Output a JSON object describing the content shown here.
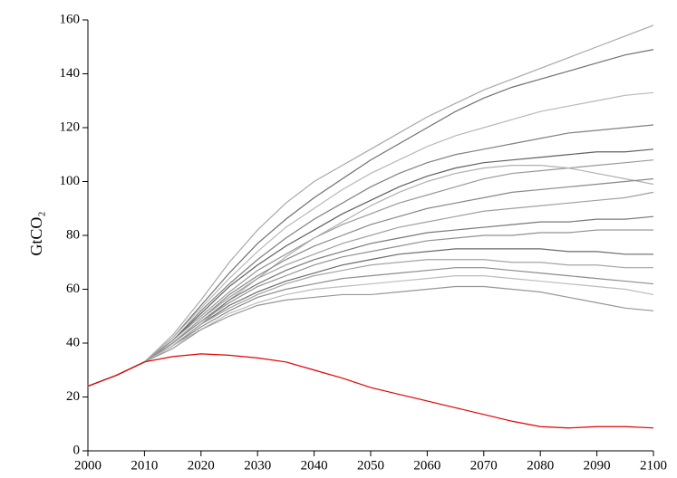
{
  "chart_data": {
    "type": "line",
    "y_label": "GtCO₂",
    "x": [
      2000,
      2005,
      2010,
      2015,
      2020,
      2025,
      2030,
      2035,
      2040,
      2045,
      2050,
      2055,
      2060,
      2065,
      2070,
      2075,
      2080,
      2085,
      2090,
      2095,
      2100
    ],
    "xlim": [
      2000,
      2100
    ],
    "xticks": [
      2000,
      2010,
      2020,
      2030,
      2040,
      2050,
      2060,
      2070,
      2080,
      2090,
      2100
    ],
    "ylim": [
      0,
      160
    ],
    "yticks": [
      0,
      20,
      40,
      60,
      80,
      100,
      120,
      140,
      160
    ],
    "grid": false,
    "series": [
      {
        "color": "#a8a8a8",
        "values": [
          24,
          28,
          33,
          43,
          56,
          70,
          82,
          92,
          100,
          106,
          112,
          118,
          124,
          129,
          134,
          138,
          142,
          146,
          150,
          154,
          158
        ]
      },
      {
        "color": "#707070",
        "values": [
          24,
          28,
          33,
          42,
          54,
          66,
          77,
          86,
          94,
          101,
          108,
          114,
          120,
          126,
          131,
          135,
          138,
          141,
          144,
          147,
          149
        ]
      },
      {
        "color": "#b8b8b8",
        "values": [
          24,
          28,
          33,
          42,
          53,
          64,
          74,
          83,
          90,
          97,
          103,
          108,
          113,
          117,
          120,
          123,
          126,
          128,
          130,
          132,
          133
        ]
      },
      {
        "color": "#808080",
        "values": [
          24,
          28,
          33,
          41,
          52,
          62,
          71,
          79,
          86,
          92,
          98,
          103,
          107,
          110,
          112,
          114,
          116,
          118,
          119,
          120,
          121
        ]
      },
      {
        "color": "#606060",
        "values": [
          24,
          28,
          33,
          41,
          51,
          61,
          69,
          76,
          82,
          88,
          93,
          98,
          102,
          105,
          107,
          108,
          109,
          110,
          111,
          111,
          112
        ]
      },
      {
        "color": "#999999",
        "values": [
          24,
          28,
          33,
          41,
          50,
          59,
          67,
          73,
          79,
          84,
          88,
          92,
          95,
          98,
          101,
          103,
          104,
          105,
          106,
          107,
          108
        ]
      },
      {
        "color": "#b0b0b0",
        "values": [
          24,
          28,
          33,
          39,
          47,
          56,
          64,
          72,
          79,
          85,
          91,
          96,
          100,
          103,
          105,
          106,
          106,
          105,
          103,
          101,
          99
        ]
      },
      {
        "color": "#888888",
        "values": [
          24,
          28,
          33,
          40,
          49,
          58,
          65,
          71,
          76,
          80,
          84,
          87,
          90,
          92,
          94,
          96,
          97,
          98,
          99,
          100,
          101
        ]
      },
      {
        "color": "#a0a0a0",
        "values": [
          24,
          28,
          33,
          40,
          49,
          57,
          64,
          69,
          73,
          77,
          80,
          83,
          85,
          87,
          89,
          90,
          91,
          92,
          93,
          94,
          96
        ]
      },
      {
        "color": "#787878",
        "values": [
          24,
          28,
          33,
          40,
          48,
          56,
          62,
          67,
          71,
          74,
          77,
          79,
          81,
          82,
          83,
          84,
          85,
          85,
          86,
          86,
          87
        ]
      },
      {
        "color": "#909090",
        "values": [
          24,
          28,
          33,
          40,
          48,
          55,
          61,
          65,
          69,
          72,
          74,
          76,
          78,
          79,
          80,
          80,
          81,
          81,
          82,
          82,
          82
        ]
      },
      {
        "color": "#6a6a6a",
        "values": [
          24,
          28,
          33,
          39,
          47,
          54,
          59,
          63,
          66,
          69,
          71,
          73,
          74,
          75,
          75,
          75,
          75,
          74,
          74,
          73,
          73
        ]
      },
      {
        "color": "#a4a4a4",
        "values": [
          24,
          28,
          33,
          39,
          47,
          53,
          58,
          62,
          65,
          67,
          69,
          70,
          71,
          71,
          71,
          70,
          70,
          69,
          69,
          68,
          68
        ]
      },
      {
        "color": "#8c8c8c",
        "values": [
          24,
          28,
          33,
          39,
          46,
          52,
          57,
          60,
          62,
          64,
          65,
          66,
          67,
          68,
          68,
          67,
          66,
          65,
          64,
          63,
          62
        ]
      },
      {
        "color": "#bcbcbc",
        "values": [
          24,
          28,
          33,
          39,
          45,
          51,
          55,
          58,
          60,
          61,
          62,
          63,
          64,
          65,
          65,
          64,
          63,
          62,
          61,
          60,
          58
        ]
      },
      {
        "color": "#969696",
        "values": [
          24,
          28,
          33,
          38,
          45,
          50,
          54,
          56,
          57,
          58,
          58,
          59,
          60,
          61,
          61,
          60,
          59,
          57,
          55,
          53,
          52
        ]
      },
      {
        "color": "#e00000",
        "values": [
          24,
          28,
          33,
          35,
          36,
          35.5,
          34.5,
          33,
          30,
          27,
          23.5,
          21,
          18.5,
          16,
          13.5,
          11,
          9,
          8.5,
          9,
          9,
          8.5
        ]
      }
    ]
  }
}
